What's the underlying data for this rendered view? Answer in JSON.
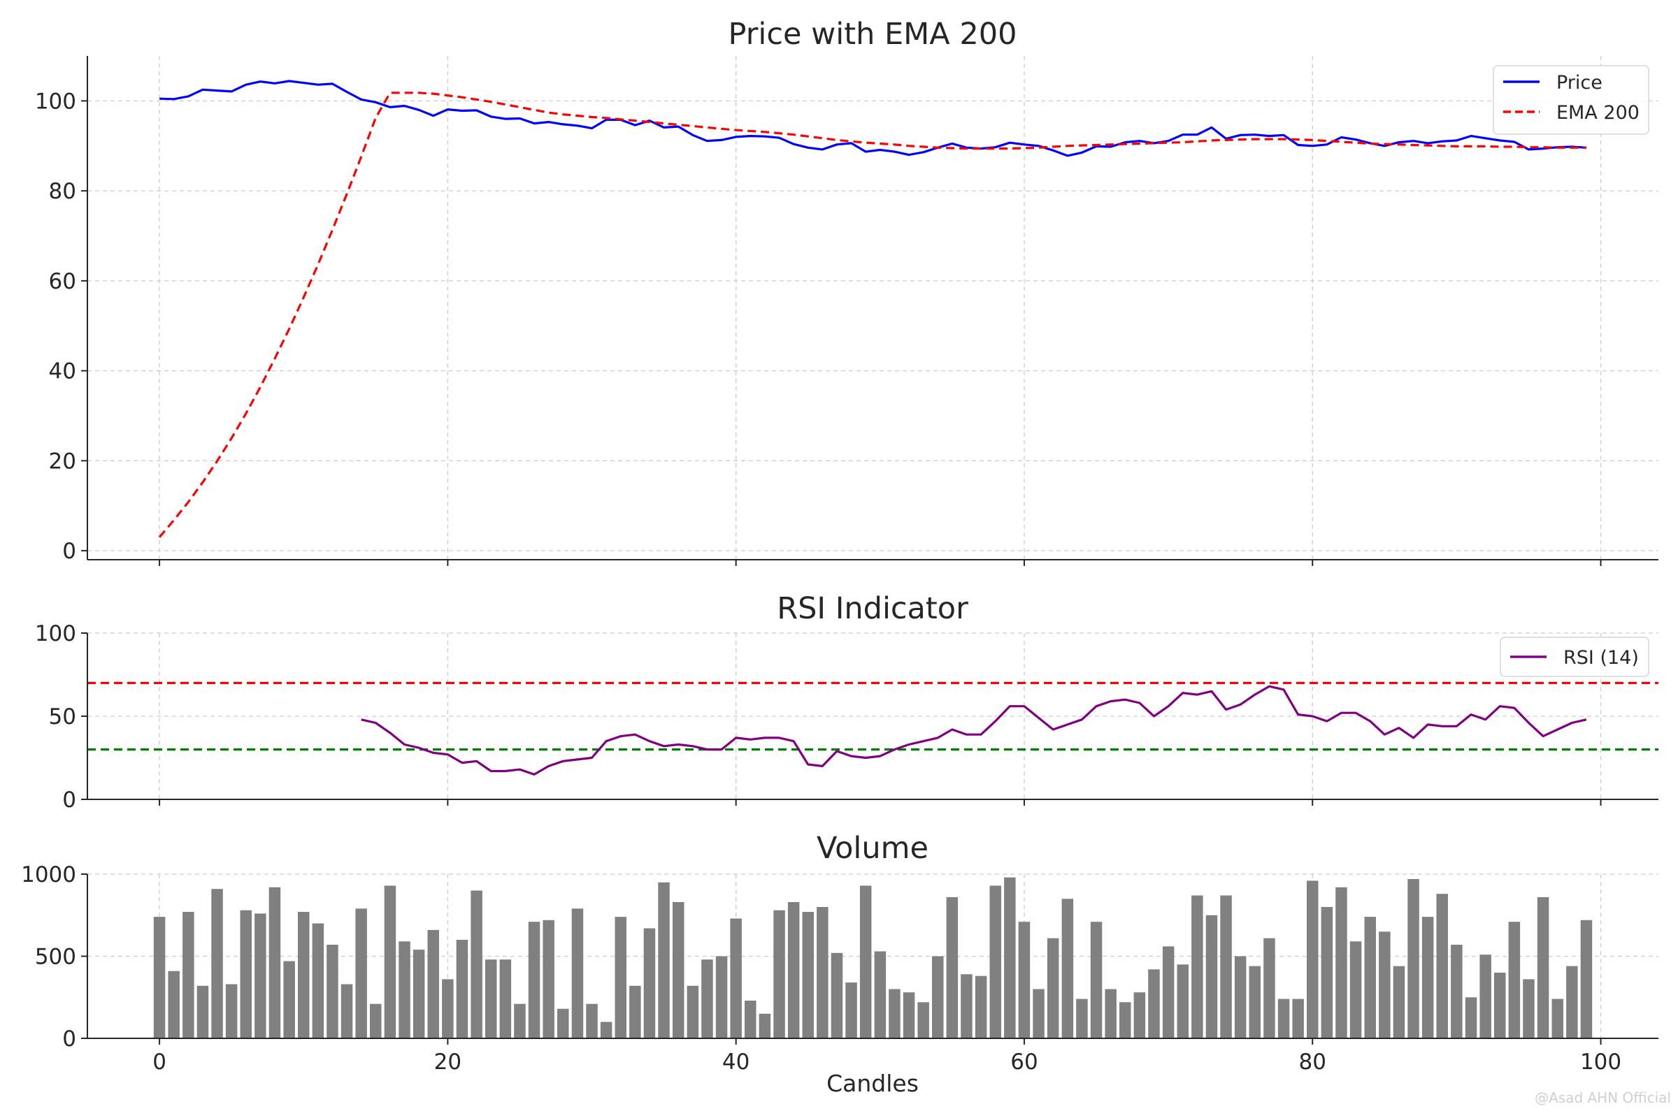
{
  "watermark": "@Asad AHN Official",
  "chart_data": [
    {
      "type": "line",
      "title": "Price with EMA 200",
      "xlim": [
        -5,
        104
      ],
      "ylim": [
        -2,
        110
      ],
      "xticks": [
        0,
        20,
        40,
        60,
        80,
        100
      ],
      "yticks": [
        0,
        20,
        40,
        60,
        80,
        100
      ],
      "grid": true,
      "legend": "top-right",
      "x": [
        0,
        1,
        2,
        3,
        4,
        5,
        6,
        7,
        8,
        9,
        10,
        11,
        12,
        13,
        14,
        15,
        16,
        17,
        18,
        19,
        20,
        21,
        22,
        23,
        24,
        25,
        26,
        27,
        28,
        29,
        30,
        31,
        32,
        33,
        34,
        35,
        36,
        37,
        38,
        39,
        40,
        41,
        42,
        43,
        44,
        45,
        46,
        47,
        48,
        49,
        50,
        51,
        52,
        53,
        54,
        55,
        56,
        57,
        58,
        59,
        60,
        61,
        62,
        63,
        64,
        65,
        66,
        67,
        68,
        69,
        70,
        71,
        72,
        73,
        74,
        75,
        76,
        77,
        78,
        79,
        80,
        81,
        82,
        83,
        84,
        85,
        86,
        87,
        88,
        89,
        90,
        91,
        92,
        93,
        94,
        95,
        96,
        97,
        98,
        99
      ],
      "series": [
        {
          "name": "Price",
          "color": "#0000ff",
          "style": "solid",
          "values": [
            100.5,
            100.4,
            101.0,
            102.5,
            102.3,
            102.1,
            103.6,
            104.3,
            103.9,
            104.4,
            104.0,
            103.6,
            103.8,
            102.0,
            100.3,
            99.7,
            98.6,
            98.9,
            98.0,
            96.7,
            98.1,
            97.8,
            97.9,
            96.5,
            96.0,
            96.1,
            95.0,
            95.3,
            94.8,
            94.5,
            93.9,
            95.8,
            95.8,
            94.6,
            95.6,
            94.1,
            94.3,
            92.4,
            91.1,
            91.3,
            92.0,
            92.2,
            92.1,
            91.8,
            90.4,
            89.6,
            89.2,
            90.3,
            90.6,
            88.7,
            89.1,
            88.7,
            88.0,
            88.6,
            89.6,
            90.5,
            89.6,
            89.4,
            89.7,
            90.7,
            90.3,
            90.0,
            89.0,
            87.8,
            88.5,
            89.9,
            89.8,
            90.8,
            91.1,
            90.6,
            91.1,
            92.5,
            92.5,
            94.1,
            91.6,
            92.4,
            92.5,
            92.2,
            92.4,
            90.2,
            90.0,
            90.3,
            91.9,
            91.4,
            90.6,
            90.0,
            90.8,
            91.1,
            90.6,
            91.0,
            91.2,
            92.2,
            91.7,
            91.2,
            90.9,
            89.2,
            89.4,
            89.7,
            89.8,
            89.6
          ]
        },
        {
          "name": "EMA 200",
          "color": "#ff0000",
          "style": "dashed",
          "values": [
            3.0,
            6.8,
            10.8,
            15.2,
            19.9,
            25.0,
            30.5,
            36.4,
            42.7,
            49.3,
            56.3,
            63.6,
            71.3,
            79.3,
            87.6,
            96.2,
            101.8,
            101.8,
            101.8,
            101.6,
            101.2,
            100.8,
            100.3,
            99.8,
            99.2,
            98.6,
            98.0,
            97.4,
            97.0,
            96.7,
            96.4,
            96.2,
            95.9,
            95.6,
            95.3,
            95.0,
            94.7,
            94.4,
            94.1,
            93.8,
            93.5,
            93.3,
            93.1,
            92.8,
            92.5,
            92.1,
            91.7,
            91.3,
            91.0,
            90.7,
            90.5,
            90.3,
            90.0,
            89.8,
            89.6,
            89.5,
            89.4,
            89.4,
            89.4,
            89.4,
            89.5,
            89.6,
            89.8,
            90.0,
            90.1,
            90.2,
            90.3,
            90.4,
            90.5,
            90.6,
            90.7,
            90.8,
            91.0,
            91.2,
            91.3,
            91.4,
            91.5,
            91.5,
            91.5,
            91.4,
            91.3,
            91.1,
            90.9,
            90.7,
            90.5,
            90.4,
            90.3,
            90.2,
            90.1,
            90.0,
            89.9,
            89.9,
            89.9,
            89.8,
            89.8,
            89.7,
            89.7,
            89.6,
            89.6,
            89.6
          ]
        }
      ]
    },
    {
      "type": "line",
      "title": "RSI Indicator",
      "xlim": [
        -5,
        104
      ],
      "ylim": [
        0,
        100
      ],
      "yticks": [
        0,
        50,
        100
      ],
      "grid": true,
      "legend": "top-right",
      "reference_lines": [
        {
          "y": 70,
          "color": "#ff0000",
          "style": "dashed"
        },
        {
          "y": 30,
          "color": "#008000",
          "style": "dashed"
        }
      ],
      "x": [
        14,
        15,
        16,
        17,
        18,
        19,
        20,
        21,
        22,
        23,
        24,
        25,
        26,
        27,
        28,
        29,
        30,
        31,
        32,
        33,
        34,
        35,
        36,
        37,
        38,
        39,
        40,
        41,
        42,
        43,
        44,
        45,
        46,
        47,
        48,
        49,
        50,
        51,
        52,
        53,
        54,
        55,
        56,
        57,
        58,
        59,
        60,
        61,
        62,
        63,
        64,
        65,
        66,
        67,
        68,
        69,
        70,
        71,
        72,
        73,
        74,
        75,
        76,
        77,
        78,
        79,
        80,
        81,
        82,
        83,
        84,
        85,
        86,
        87,
        88,
        89,
        90,
        91,
        92,
        93,
        94,
        95,
        96,
        97,
        98,
        99
      ],
      "series": [
        {
          "name": "RSI (14)",
          "color": "#800080",
          "style": "solid",
          "values": [
            48,
            46,
            40,
            33,
            31,
            28,
            27,
            22,
            23,
            17,
            17,
            18,
            15,
            20,
            23,
            24,
            25,
            35,
            38,
            39,
            35,
            32,
            33,
            32,
            30,
            30,
            37,
            36,
            37,
            37,
            35,
            21,
            20,
            29,
            26,
            25,
            26,
            30,
            33,
            35,
            37,
            42,
            39,
            39,
            47,
            56,
            56,
            49,
            42,
            45,
            48,
            56,
            59,
            60,
            58,
            50,
            56,
            64,
            63,
            65,
            54,
            57,
            63,
            68,
            66,
            51,
            50,
            47,
            52,
            52,
            47,
            39,
            43,
            37,
            45,
            44,
            44,
            51,
            48,
            56,
            55,
            46,
            38,
            42,
            46,
            48
          ]
        }
      ]
    },
    {
      "type": "bar",
      "title": "Volume",
      "xlabel": "Candles",
      "xlim": [
        -5,
        104
      ],
      "ylim": [
        0,
        1000
      ],
      "xticks": [
        0,
        20,
        40,
        60,
        80,
        100
      ],
      "yticks": [
        0,
        500,
        1000
      ],
      "grid": true,
      "color": "#808080",
      "categories": [
        0,
        1,
        2,
        3,
        4,
        5,
        6,
        7,
        8,
        9,
        10,
        11,
        12,
        13,
        14,
        15,
        16,
        17,
        18,
        19,
        20,
        21,
        22,
        23,
        24,
        25,
        26,
        27,
        28,
        29,
        30,
        31,
        32,
        33,
        34,
        35,
        36,
        37,
        38,
        39,
        40,
        41,
        42,
        43,
        44,
        45,
        46,
        47,
        48,
        49,
        50,
        51,
        52,
        53,
        54,
        55,
        56,
        57,
        58,
        59,
        60,
        61,
        62,
        63,
        64,
        65,
        66,
        67,
        68,
        69,
        70,
        71,
        72,
        73,
        74,
        75,
        76,
        77,
        78,
        79,
        80,
        81,
        82,
        83,
        84,
        85,
        86,
        87,
        88,
        89,
        90,
        91,
        92,
        93,
        94,
        95,
        96,
        97,
        98,
        99
      ],
      "values": [
        740,
        410,
        770,
        320,
        910,
        330,
        780,
        760,
        920,
        470,
        770,
        700,
        570,
        330,
        790,
        210,
        930,
        590,
        540,
        660,
        360,
        600,
        900,
        480,
        480,
        210,
        710,
        720,
        180,
        790,
        210,
        100,
        740,
        320,
        670,
        950,
        830,
        320,
        480,
        500,
        730,
        230,
        150,
        780,
        830,
        770,
        800,
        520,
        340,
        930,
        530,
        300,
        280,
        220,
        500,
        860,
        390,
        380,
        930,
        980,
        710,
        300,
        610,
        850,
        240,
        710,
        300,
        220,
        280,
        420,
        560,
        450,
        870,
        750,
        870,
        500,
        440,
        610,
        240,
        240,
        960,
        800,
        920,
        590,
        740,
        650,
        440,
        970,
        740,
        880,
        570,
        250,
        510,
        400,
        710,
        360,
        860,
        240,
        440,
        720
      ]
    }
  ]
}
